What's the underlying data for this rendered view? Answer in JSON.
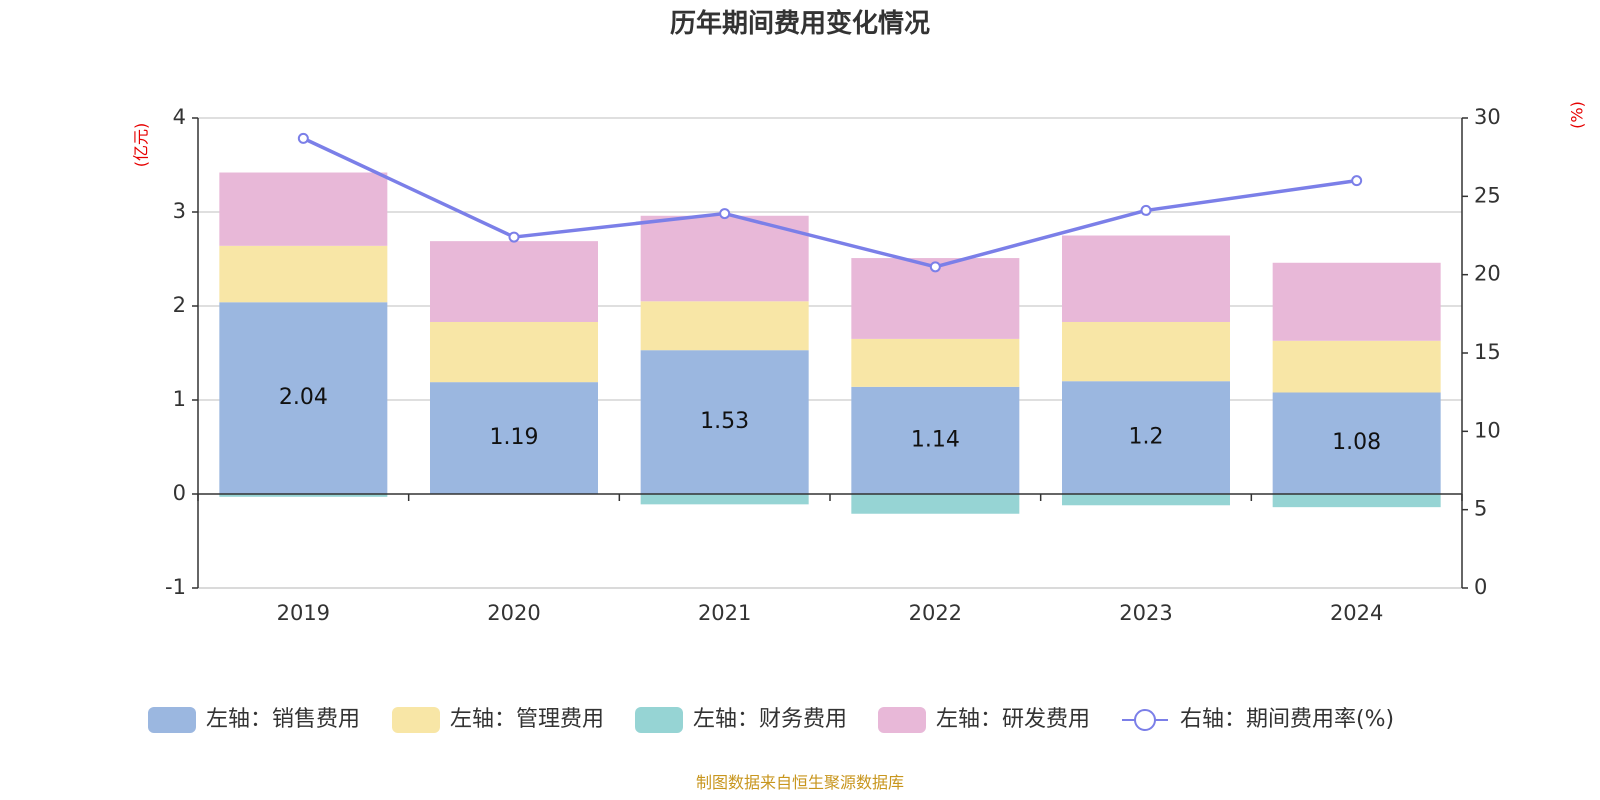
{
  "chart_data": {
    "type": "bar",
    "title": "历年期间费用变化情况",
    "categories": [
      "2019",
      "2020",
      "2021",
      "2022",
      "2023",
      "2024"
    ],
    "left_axis": {
      "unit": "(亿元)",
      "ylim": [
        -1,
        4
      ],
      "ticks": [
        4,
        3,
        2,
        1,
        0,
        -1
      ],
      "tick_labels": [
        "4",
        "3",
        "2",
        "1",
        "0",
        "-1"
      ]
    },
    "right_axis": {
      "unit": "(%)",
      "ylim": [
        0,
        30
      ],
      "ticks": [
        30,
        25,
        20,
        15,
        10,
        5,
        0
      ],
      "tick_labels": [
        "30",
        "25",
        "20",
        "15",
        "10",
        "5",
        "0"
      ]
    },
    "series": [
      {
        "name": "左轴：销售费用",
        "type": "bar",
        "color": "#9bb7e0",
        "values": [
          2.04,
          1.19,
          1.53,
          1.14,
          1.2,
          1.08
        ],
        "data_labels": [
          "2.04",
          "1.19",
          "1.53",
          "1.14",
          "1.2",
          "1.08"
        ]
      },
      {
        "name": "左轴：管理费用",
        "type": "bar",
        "color": "#f8e6a6",
        "values": [
          0.6,
          0.64,
          0.52,
          0.51,
          0.63,
          0.55
        ]
      },
      {
        "name": "左轴：财务费用",
        "type": "bar",
        "color": "#96d4d4",
        "values": [
          -0.03,
          0.0,
          -0.11,
          -0.21,
          -0.12,
          -0.14
        ]
      },
      {
        "name": "左轴：研发费用",
        "type": "bar",
        "color": "#e8b8d8",
        "values": [
          0.78,
          0.86,
          0.91,
          0.86,
          0.92,
          0.83
        ]
      },
      {
        "name": "右轴：期间费用率(%)",
        "type": "line",
        "color": "#7b7fe8",
        "values": [
          28.7,
          22.4,
          23.9,
          20.5,
          24.1,
          26.0
        ]
      }
    ],
    "legend_position": "bottom",
    "source": "制图数据来自恒生聚源数据库"
  }
}
